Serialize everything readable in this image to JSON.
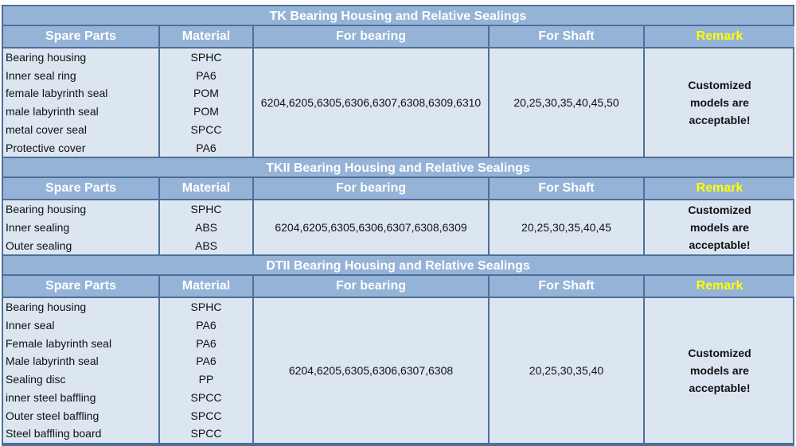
{
  "colors": {
    "header": "#95b3d7",
    "body": "#dce6f1",
    "border": "#4f6f99",
    "remark_header": "#ffff00"
  },
  "columns": [
    "Spare Parts",
    "Material",
    "For bearing",
    "For Shaft",
    "Remark"
  ],
  "sections": [
    {
      "title": "TK Bearing Housing and Relative Sealings",
      "rows": [
        [
          "Bearing housing",
          "SPHC"
        ],
        [
          "Inner seal ring",
          "PA6"
        ],
        [
          "female labyrinth seal",
          "POM"
        ],
        [
          "male labyrinth seal",
          "POM"
        ],
        [
          "metal cover seal",
          "SPCC"
        ],
        [
          "Protective cover",
          "PA6"
        ]
      ],
      "bearing": "6204,6205,6305,6306,6307,6308,6309,6310",
      "shaft": "20,25,30,35,40,45,50",
      "remark": "Customized models are acceptable!"
    },
    {
      "title": "TKII Bearing Housing and Relative Sealings",
      "rows": [
        [
          "Bearing housing",
          "SPHC"
        ],
        [
          "Inner sealing",
          "ABS"
        ],
        [
          "Outer sealing",
          "ABS"
        ]
      ],
      "bearing": "6204,6205,6305,6306,6307,6308,6309",
      "shaft": "20,25,30,35,40,45",
      "remark": "Customized models are acceptable!"
    },
    {
      "title": "DTII Bearing Housing and Relative Sealings",
      "rows": [
        [
          "Bearing housing",
          "SPHC"
        ],
        [
          "Inner seal",
          "PA6"
        ],
        [
          "Female labyrinth seal",
          "PA6"
        ],
        [
          "Male labyrinth seal",
          "PA6"
        ],
        [
          "Sealing disc",
          "PP"
        ],
        [
          "inner steel baffling",
          "SPCC"
        ],
        [
          "Outer steel baffling",
          "SPCC"
        ],
        [
          "Steel baffling board",
          "SPCC"
        ]
      ],
      "bearing": "6204,6205,6305,6306,6307,6308",
      "shaft": "20,25,30,35,40",
      "remark": "Customized models are acceptable!"
    }
  ]
}
